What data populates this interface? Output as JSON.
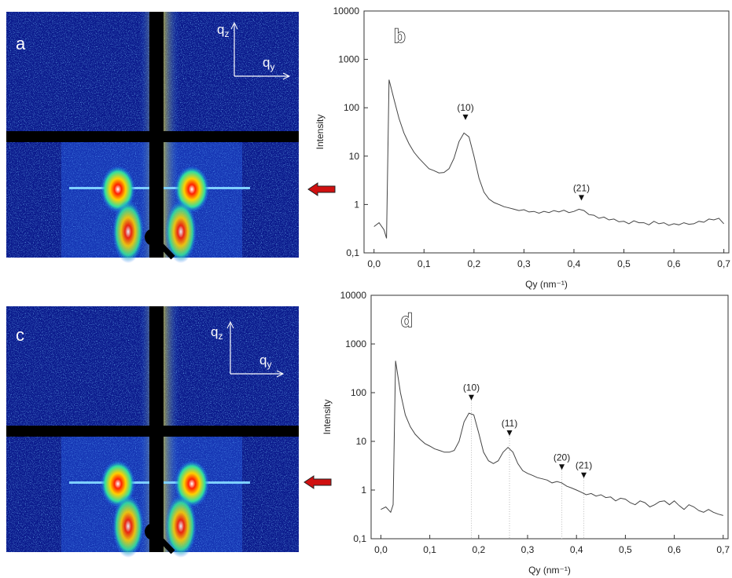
{
  "images": [
    {
      "label": "a",
      "axis_v": {
        "base": "q",
        "sub": "z"
      },
      "axis_h": {
        "base": "q",
        "sub": "y"
      }
    },
    {
      "label": "c",
      "axis_v": {
        "base": "q",
        "sub": "z"
      },
      "axis_h": {
        "base": "q",
        "sub": "y"
      }
    }
  ],
  "chart_data": [
    {
      "type": "line",
      "panel": "b",
      "x_label": "Qy (nm⁻¹)",
      "y_label": "Intensity",
      "color": "#444444",
      "log_y": true,
      "guide_lines": false,
      "xlim": [
        -0.02,
        0.71
      ],
      "ylim": [
        0.1,
        10000
      ],
      "xticks": [
        {
          "value": 0,
          "label": "0,0"
        },
        {
          "value": 0.1,
          "label": "0,1"
        },
        {
          "value": 0.2,
          "label": "0,2"
        },
        {
          "value": 0.3,
          "label": "0,3"
        },
        {
          "value": 0.4,
          "label": "0,4"
        },
        {
          "value": 0.5,
          "label": "0,5"
        },
        {
          "value": 0.6,
          "label": "0,6"
        },
        {
          "value": 0.7,
          "label": "0,7"
        }
      ],
      "yticks": [
        {
          "value": 0.1,
          "label": "0,1"
        },
        1,
        10,
        100,
        1000,
        10000
      ],
      "x": [
        0,
        0.01,
        0.02,
        0.025,
        0.03,
        0.04,
        0.05,
        0.06,
        0.07,
        0.08,
        0.09,
        0.1,
        0.11,
        0.12,
        0.13,
        0.14,
        0.15,
        0.16,
        0.17,
        0.18,
        0.19,
        0.2,
        0.21,
        0.22,
        0.23,
        0.24,
        0.25,
        0.26,
        0.27,
        0.28,
        0.29,
        0.3,
        0.31,
        0.32,
        0.33,
        0.34,
        0.35,
        0.36,
        0.37,
        0.38,
        0.39,
        0.4,
        0.41,
        0.42,
        0.43,
        0.44,
        0.45,
        0.46,
        0.47,
        0.48,
        0.49,
        0.5,
        0.51,
        0.52,
        0.53,
        0.54,
        0.55,
        0.56,
        0.57,
        0.58,
        0.59,
        0.6,
        0.61,
        0.62,
        0.63,
        0.64,
        0.65,
        0.66,
        0.67,
        0.68,
        0.69,
        0.7
      ],
      "values": [
        0.35,
        0.42,
        0.3,
        0.2,
        380,
        150,
        60,
        30,
        18,
        12,
        9,
        7,
        5.5,
        5,
        4.5,
        4.6,
        5.5,
        9,
        20,
        30,
        25,
        10,
        3.5,
        1.8,
        1.3,
        1.1,
        1.0,
        0.9,
        0.85,
        0.8,
        0.75,
        0.78,
        0.7,
        0.72,
        0.66,
        0.72,
        0.68,
        0.75,
        0.7,
        0.76,
        0.68,
        0.72,
        0.8,
        0.75,
        0.62,
        0.6,
        0.52,
        0.55,
        0.48,
        0.5,
        0.44,
        0.45,
        0.4,
        0.46,
        0.42,
        0.42,
        0.38,
        0.45,
        0.4,
        0.42,
        0.37,
        0.4,
        0.38,
        0.42,
        0.39,
        0.4,
        0.45,
        0.43,
        0.5,
        0.48,
        0.52,
        0.4
      ],
      "annotations": [
        {
          "text": "(10)",
          "x": 0.183,
          "y": 60
        },
        {
          "text": "(21)",
          "x": 0.415,
          "y": 1.3
        }
      ]
    },
    {
      "type": "line",
      "panel": "d",
      "x_label": "Qy (nm⁻¹)",
      "y_label": "Intensity",
      "color": "#444444",
      "log_y": true,
      "guide_lines": true,
      "xlim": [
        -0.02,
        0.71
      ],
      "ylim": [
        0.1,
        10000
      ],
      "xticks": [
        {
          "value": 0,
          "label": "0,0"
        },
        {
          "value": 0.1,
          "label": "0,1"
        },
        {
          "value": 0.2,
          "label": "0,2"
        },
        {
          "value": 0.3,
          "label": "0,3"
        },
        {
          "value": 0.4,
          "label": "0,4"
        },
        {
          "value": 0.5,
          "label": "0,5"
        },
        {
          "value": 0.6,
          "label": "0,6"
        },
        {
          "value": 0.7,
          "label": "0,7"
        }
      ],
      "yticks": [
        {
          "value": 0.1,
          "label": "0,1"
        },
        1,
        10,
        100,
        1000,
        10000
      ],
      "x": [
        0,
        0.01,
        0.02,
        0.025,
        0.03,
        0.04,
        0.05,
        0.06,
        0.07,
        0.08,
        0.09,
        0.1,
        0.11,
        0.12,
        0.13,
        0.14,
        0.15,
        0.16,
        0.17,
        0.18,
        0.19,
        0.2,
        0.21,
        0.22,
        0.23,
        0.24,
        0.25,
        0.26,
        0.27,
        0.28,
        0.29,
        0.3,
        0.31,
        0.32,
        0.33,
        0.34,
        0.35,
        0.36,
        0.37,
        0.38,
        0.39,
        0.4,
        0.41,
        0.42,
        0.43,
        0.44,
        0.45,
        0.46,
        0.47,
        0.48,
        0.49,
        0.5,
        0.51,
        0.52,
        0.53,
        0.54,
        0.55,
        0.56,
        0.57,
        0.58,
        0.59,
        0.6,
        0.61,
        0.62,
        0.63,
        0.64,
        0.65,
        0.66,
        0.67,
        0.68,
        0.69,
        0.7
      ],
      "values": [
        0.4,
        0.45,
        0.35,
        0.5,
        450,
        100,
        35,
        20,
        14,
        11,
        9,
        8,
        7,
        6.5,
        6,
        6,
        6.5,
        10,
        25,
        38,
        35,
        15,
        6,
        4,
        3.5,
        4,
        6,
        7.5,
        6,
        3.5,
        2.5,
        2.2,
        2,
        1.8,
        1.7,
        1.6,
        1.4,
        1.5,
        1.4,
        1.2,
        1.1,
        1.0,
        0.9,
        0.8,
        0.85,
        0.75,
        0.8,
        0.7,
        0.72,
        0.6,
        0.68,
        0.65,
        0.55,
        0.5,
        0.6,
        0.55,
        0.45,
        0.5,
        0.58,
        0.6,
        0.5,
        0.6,
        0.48,
        0.4,
        0.5,
        0.45,
        0.38,
        0.35,
        0.4,
        0.35,
        0.32,
        0.3
      ],
      "annotations": [
        {
          "text": "(10)",
          "x": 0.185,
          "y": 75
        },
        {
          "text": "(11)",
          "x": 0.263,
          "y": 14
        },
        {
          "text": "(20)",
          "x": 0.37,
          "y": 2.8
        },
        {
          "text": "(21)",
          "x": 0.415,
          "y": 1.9
        }
      ]
    }
  ]
}
